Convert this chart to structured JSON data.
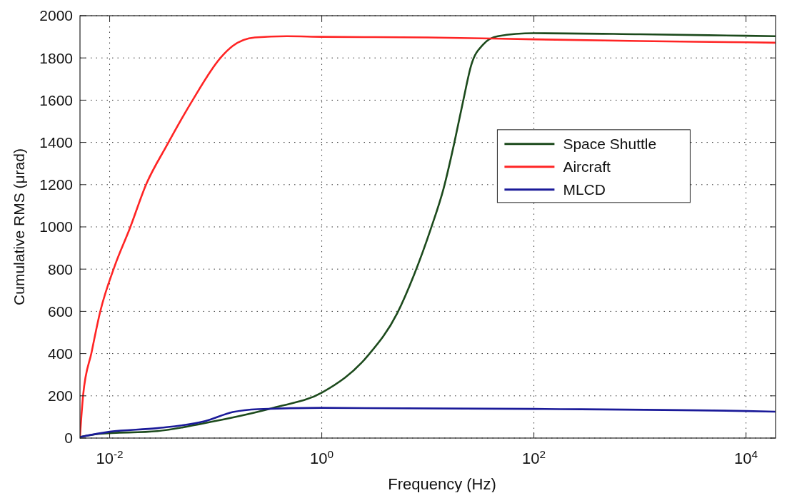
{
  "chart_data": {
    "type": "line",
    "xlabel": "Frequency (Hz)",
    "ylabel": "Cumulative RMS (μrad)",
    "log": "x",
    "xlim": [
      0.00525,
      19000
    ],
    "xticks": [
      {
        "value": 0.01,
        "label": "10$^{-2}$"
      },
      {
        "value": 1,
        "label": "10$^{0}$"
      },
      {
        "value": 100,
        "label": "10$^{2}$"
      },
      {
        "value": 10000,
        "label": "10$^{4}$"
      }
    ],
    "ylim": [
      0,
      2000
    ],
    "yticks": [
      0,
      200,
      400,
      600,
      800,
      1000,
      1200,
      1400,
      1600,
      1800,
      2000
    ],
    "grid": true,
    "legend": "right",
    "line_style": "solid",
    "series": [
      {
        "name": "Space Shuttle",
        "color": "#1c4a1c",
        "x": [
          0.00525,
          0.00813,
          0.0282,
          0.0977,
          0.347,
          1,
          2.75,
          5.13,
          7.41,
          10.7,
          14.1,
          17.8,
          21.4,
          25.7,
          33.1,
          45.7,
          100,
          1000,
          10000,
          19000
        ],
        "values": [
          5,
          20,
          33,
          80,
          143,
          215,
          393,
          590,
          773,
          993,
          1183,
          1400,
          1590,
          1767,
          1863,
          1903,
          1917,
          1912,
          1905,
          1903
        ]
      },
      {
        "name": "Aircraft",
        "color": "#ff2424",
        "x": [
          0.00525,
          0.00562,
          0.00676,
          0.00813,
          0.0112,
          0.0155,
          0.0219,
          0.0347,
          0.0589,
          0.112,
          0.145,
          0.234,
          0.468,
          1,
          10,
          100,
          1000,
          10000,
          19000
        ],
        "values": [
          10,
          203,
          407,
          597,
          817,
          993,
          1197,
          1387,
          1590,
          1803,
          1857,
          1897,
          1903,
          1900,
          1897,
          1888,
          1880,
          1874,
          1872
        ]
      },
      {
        "name": "MLCD",
        "color": "#1a1a99",
        "x": [
          0.00525,
          0.01,
          0.0282,
          0.0794,
          0.145,
          0.251,
          1,
          100,
          10000,
          19000
        ],
        "values": [
          5,
          30,
          47,
          80,
          123,
          137,
          143,
          138,
          128,
          125
        ]
      }
    ]
  }
}
